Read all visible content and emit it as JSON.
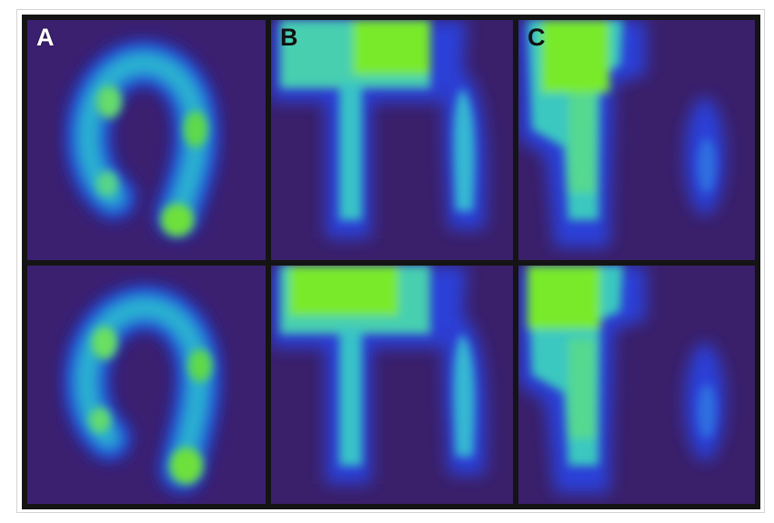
{
  "figure": {
    "columns": [
      {
        "label": "A"
      },
      {
        "label": "B"
      },
      {
        "label": "C"
      }
    ],
    "rows": 2,
    "colormap": {
      "background": "#3a1f6b",
      "low": "#2a2fd0",
      "mid": "#28c8c0",
      "high": "#6fe82a"
    }
  }
}
